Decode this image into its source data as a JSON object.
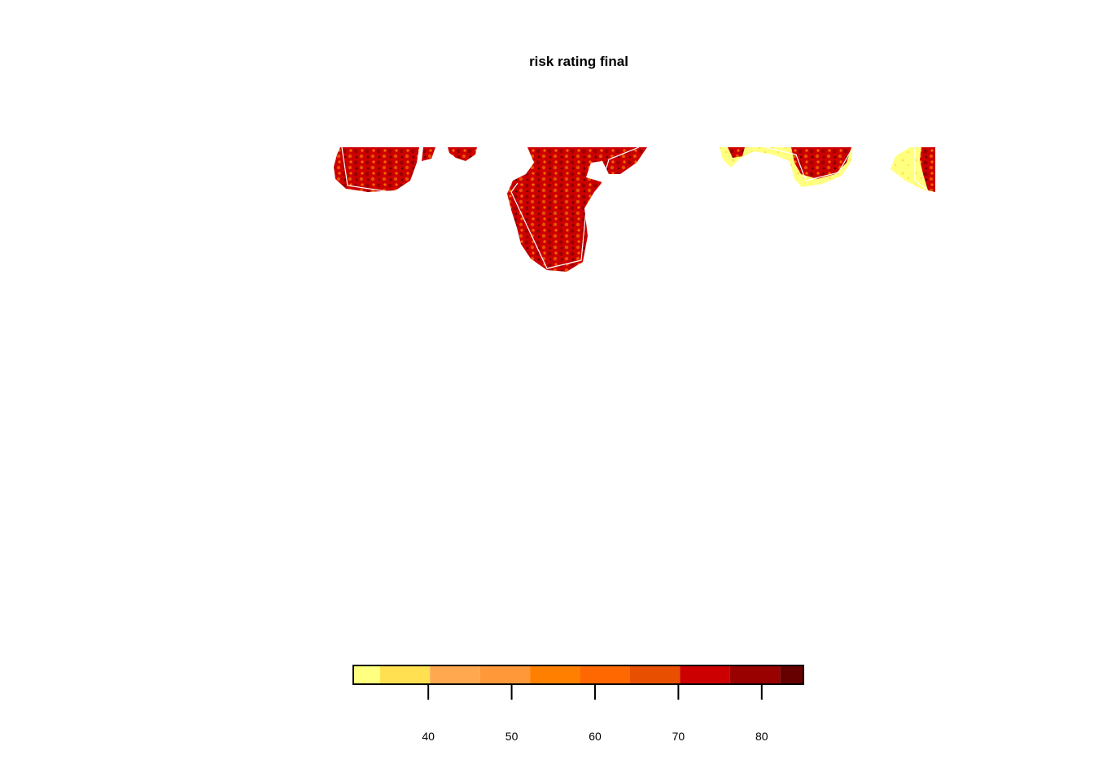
{
  "chart_data": {
    "type": "heatmap",
    "title": "risk rating final",
    "xlabel": "",
    "ylabel": "",
    "legend": {
      "placement": "bottom",
      "range": [
        31,
        85
      ],
      "breaks": [
        31,
        34.2,
        40.2,
        46.2,
        52.2,
        58.2,
        64.2,
        70.2,
        76.2,
        82.2,
        85
      ],
      "colors": [
        "#FFFF80",
        "#FFE050",
        "#FFA850",
        "#FF9838",
        "#FF8000",
        "#FF6800",
        "#E85000",
        "#CC0000",
        "#990000",
        "#660000"
      ],
      "ticks": [
        40,
        50,
        60,
        70,
        80
      ],
      "tick_labels": [
        "40",
        "50",
        "60",
        "70",
        "80"
      ]
    },
    "regions": [
      {
        "name": "",
        "dominant_class": 8
      },
      {
        "name": "",
        "dominant_class": 8
      },
      {
        "name": "",
        "dominant_class": 8
      },
      {
        "name": "",
        "dominant_class": 1
      },
      {
        "name": "",
        "dominant_class": 1
      }
    ]
  }
}
